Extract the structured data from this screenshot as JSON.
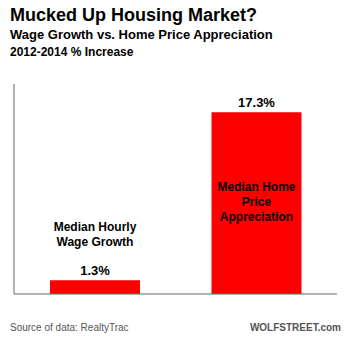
{
  "chart_data": {
    "type": "bar",
    "title": "Mucked Up Housing Market?",
    "subtitle": [
      "Wage Growth vs. Home Price Appreciation",
      "2012-2014 % Increase"
    ],
    "annotations": [
      "Source of data: RealtyTrac",
      "WOLFSTREET.com"
    ],
    "categories": [
      "Median Hourly\nWage Growth",
      "Median Home\nPrice\nAppreciation"
    ],
    "values": [
      1.3,
      17.3
    ],
    "value_labels": [
      "1.3%",
      "17.3%"
    ],
    "data_labels": true,
    "color": "#FF0000",
    "ylim": [
      0,
      20
    ],
    "tick_labels": false,
    "grid": false
  }
}
